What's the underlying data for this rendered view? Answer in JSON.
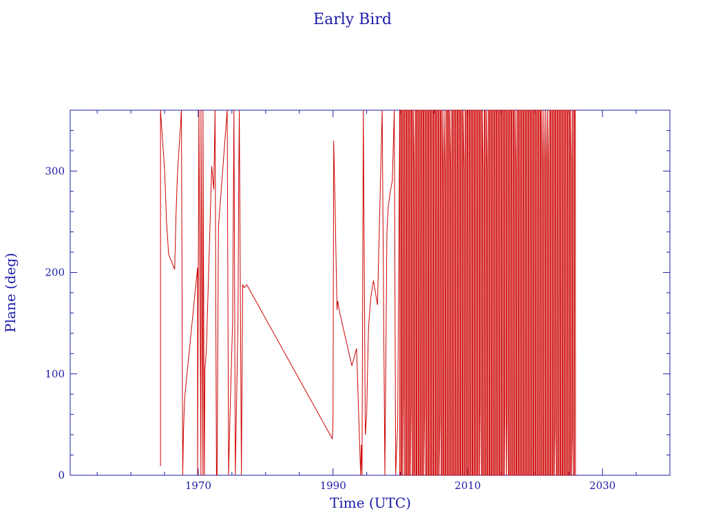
{
  "chart_data": {
    "type": "line",
    "title": "Early Bird",
    "xlabel": "Time (UTC)",
    "ylabel": "Plane (deg)",
    "xlim": [
      1951,
      2040
    ],
    "ylim": [
      0,
      360
    ],
    "x_ticks": [
      1970,
      1990,
      2010,
      2030
    ],
    "y_ticks": [
      0,
      100,
      200,
      300
    ],
    "grid": false,
    "colors": {
      "axis": "#1a1aa8",
      "series": "#cc0000",
      "background": "#ffffff"
    },
    "series": [
      {
        "x": [
          1964.4,
          1964.4,
          1965.0,
          1965.3,
          1965.6,
          1966.5,
          1966.7,
          1966.9,
          1967.5,
          1967.7,
          1967.8,
          1967.9,
          1968.0,
          1969.9,
          1969.9,
          1970.1,
          1970.4,
          1970.4,
          1970.7,
          1970.7,
          1970.9,
          1971.0,
          1971.2,
          1972.0,
          1972.3,
          1972.5,
          1972.7,
          1972.8,
          1973.0,
          1974.3,
          1974.5,
          1974.7,
          1975.1,
          1975.3,
          1975.5,
          1975.9,
          1976.0,
          1976.1,
          1976.4,
          1976.6,
          1976.8,
          1977.2,
          1977.2,
          1989.9,
          1990.0,
          1990.1,
          1990.3,
          1990.6,
          1990.7,
          1991.0,
          1992.8,
          1993.5,
          1994.1,
          1994.2,
          1994.3,
          1994.5,
          1994.8,
          1995.0,
          1995.2,
          1995.3,
          1995.6,
          1996.0,
          1996.6,
          1997.3,
          1997.7,
          1998.0,
          1998.2,
          1998.5,
          1998.8,
          1999.1,
          1999.3,
          1999.6,
          1999.9
        ],
        "y": [
          9,
          360,
          302,
          250,
          218,
          203,
          255,
          295,
          360,
          0,
          40,
          62,
          78,
          205,
          0,
          360,
          0,
          360,
          0,
          360,
          0,
          105,
          122,
          305,
          282,
          360,
          0,
          0,
          245,
          360,
          0,
          55,
          152,
          360,
          0,
          155,
          290,
          360,
          0,
          188,
          185,
          188,
          188,
          36,
          55,
          330,
          270,
          163,
          172,
          160,
          108,
          125,
          0,
          30,
          0,
          360,
          40,
          60,
          128,
          148,
          175,
          192,
          168,
          360,
          0,
          240,
          265,
          280,
          290,
          360,
          0,
          50,
          360
        ]
      },
      {
        "type": "oscillation",
        "x_range": [
          1999.9,
          2026.1
        ],
        "cycles": 92,
        "y_range": [
          0,
          360
        ]
      }
    ]
  }
}
